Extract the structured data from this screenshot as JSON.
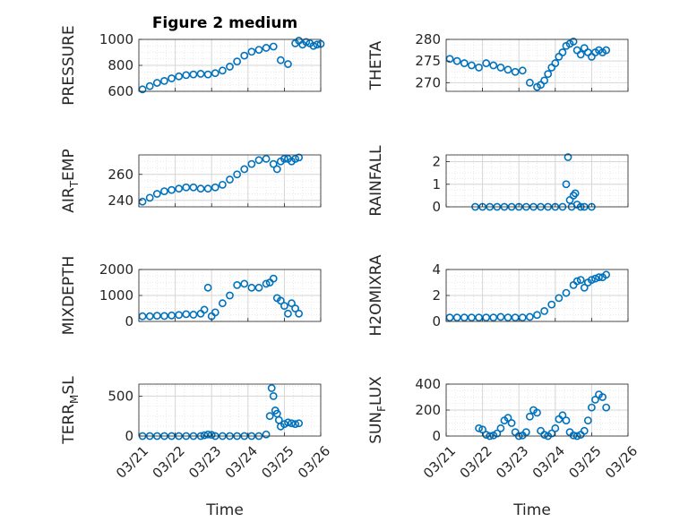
{
  "title": "Figure 2 medium",
  "xlabel": "Time",
  "colors": {
    "marker": "#0072BD",
    "grid": "#e0e0e0",
    "axis": "#262626"
  },
  "chart_data": [
    {
      "type": "scatter",
      "ylabel": "PRESSURE",
      "ylabel_sub": null,
      "ylim": [
        600,
        1000
      ],
      "yticks": [
        600,
        800,
        1000
      ],
      "xticks": [
        "03/21",
        "03/22",
        "03/23",
        "03/24",
        "03/25",
        "03/26"
      ],
      "xlim": [
        0,
        5
      ],
      "grid": true,
      "show_xticklabels": false,
      "series": [
        {
          "x": [
            0.1,
            0.3,
            0.5,
            0.7,
            0.9,
            1.1,
            1.3,
            1.5,
            1.7,
            1.9,
            2.1,
            2.3,
            2.5,
            2.7,
            2.9,
            3.1,
            3.3,
            3.5,
            3.7,
            3.9,
            4.1,
            4.3,
            4.4,
            4.5,
            4.6,
            4.7,
            4.8,
            4.9,
            5.0
          ],
          "y": [
            615,
            640,
            665,
            680,
            700,
            715,
            725,
            730,
            735,
            730,
            740,
            760,
            790,
            830,
            875,
            905,
            920,
            935,
            945,
            840,
            810,
            970,
            990,
            960,
            980,
            970,
            950,
            960,
            965
          ]
        }
      ]
    },
    {
      "type": "scatter",
      "ylabel": "THETA",
      "ylabel_sub": null,
      "ylim": [
        268,
        280
      ],
      "yticks": [
        270,
        275,
        280
      ],
      "xticks": [
        "03/21",
        "03/22",
        "03/23",
        "03/24",
        "03/25",
        "03/26"
      ],
      "xlim": [
        0,
        5
      ],
      "grid": true,
      "show_xticklabels": false,
      "series": [
        {
          "x": [
            0.1,
            0.3,
            0.5,
            0.7,
            0.9,
            1.1,
            1.3,
            1.5,
            1.7,
            1.9,
            2.1,
            2.3,
            2.5,
            2.6,
            2.7,
            2.8,
            2.9,
            3.0,
            3.1,
            3.2,
            3.3,
            3.4,
            3.5,
            3.6,
            3.7,
            3.8,
            3.9,
            4.0,
            4.1,
            4.2,
            4.3,
            4.4
          ],
          "y": [
            275.5,
            275,
            274.5,
            274,
            273.5,
            274.5,
            274,
            273.5,
            273,
            272.5,
            272.8,
            270,
            269,
            269.5,
            270.5,
            272,
            273.5,
            274.5,
            276,
            277,
            278.5,
            279,
            279.5,
            277.5,
            276.5,
            278,
            277,
            276,
            277,
            277.5,
            277,
            277.5
          ]
        }
      ]
    },
    {
      "type": "scatter",
      "ylabel": "AIR",
      "ylabel_sub": "T",
      "ylabel_suffix": "EMP",
      "ylim": [
        235,
        275
      ],
      "yticks": [
        240,
        260
      ],
      "xticks": [
        "03/21",
        "03/22",
        "03/23",
        "03/24",
        "03/25",
        "03/26"
      ],
      "xlim": [
        0,
        5
      ],
      "grid": true,
      "show_xticklabels": false,
      "series": [
        {
          "x": [
            0.1,
            0.3,
            0.5,
            0.7,
            0.9,
            1.1,
            1.3,
            1.5,
            1.7,
            1.9,
            2.1,
            2.3,
            2.5,
            2.7,
            2.9,
            3.1,
            3.3,
            3.5,
            3.7,
            3.8,
            3.9,
            4.0,
            4.1,
            4.2,
            4.3,
            4.4
          ],
          "y": [
            239,
            242,
            245,
            247,
            248,
            249,
            250,
            250,
            249,
            249,
            250,
            252,
            256,
            260,
            264,
            268,
            271,
            272,
            268,
            264,
            270,
            272,
            272,
            270,
            272,
            273
          ]
        }
      ]
    },
    {
      "type": "scatter",
      "ylabel": "RAINFALL",
      "ylabel_sub": null,
      "ylim": [
        0,
        2.3
      ],
      "yticks": [
        0,
        1,
        2
      ],
      "xticks": [
        "03/21",
        "03/22",
        "03/23",
        "03/24",
        "03/25",
        "03/26"
      ],
      "xlim": [
        0,
        5
      ],
      "grid": true,
      "show_xticklabels": false,
      "series": [
        {
          "x": [
            0.8,
            1.0,
            1.2,
            1.4,
            1.6,
            1.8,
            2.0,
            2.2,
            2.4,
            2.6,
            2.8,
            3.0,
            3.2,
            3.3,
            3.35,
            3.4,
            3.45,
            3.5,
            3.55,
            3.6,
            3.7,
            3.8,
            4.0
          ],
          "y": [
            0,
            0,
            0,
            0,
            0,
            0,
            0,
            0,
            0,
            0,
            0,
            0,
            0,
            1.0,
            2.2,
            0.3,
            0.0,
            0.5,
            0.6,
            0.1,
            0,
            0,
            0
          ]
        }
      ]
    },
    {
      "type": "scatter",
      "ylabel": "MIXDEPTH",
      "ylabel_sub": null,
      "ylim": [
        0,
        2000
      ],
      "yticks": [
        0,
        1000,
        2000
      ],
      "xticks": [
        "03/21",
        "03/22",
        "03/23",
        "03/24",
        "03/25",
        "03/26"
      ],
      "xlim": [
        0,
        5
      ],
      "grid": true,
      "show_xticklabels": false,
      "series": [
        {
          "x": [
            0.1,
            0.3,
            0.5,
            0.7,
            0.9,
            1.1,
            1.3,
            1.5,
            1.7,
            1.8,
            1.9,
            2.0,
            2.1,
            2.3,
            2.5,
            2.7,
            2.9,
            3.1,
            3.3,
            3.5,
            3.6,
            3.7,
            3.8,
            3.9,
            4.0,
            4.1,
            4.2,
            4.3,
            4.4
          ],
          "y": [
            200,
            200,
            220,
            210,
            230,
            250,
            280,
            260,
            300,
            450,
            1300,
            200,
            350,
            700,
            1000,
            1400,
            1450,
            1300,
            1300,
            1450,
            1500,
            1650,
            900,
            800,
            600,
            300,
            700,
            500,
            300
          ]
        }
      ]
    },
    {
      "type": "scatter",
      "ylabel": "H2OMIXRA",
      "ylabel_sub": null,
      "ylim": [
        0,
        4
      ],
      "yticks": [
        0,
        2,
        4
      ],
      "xticks": [
        "03/21",
        "03/22",
        "03/23",
        "03/24",
        "03/25",
        "03/26"
      ],
      "xlim": [
        0,
        5
      ],
      "grid": true,
      "show_xticklabels": false,
      "series": [
        {
          "x": [
            0.1,
            0.3,
            0.5,
            0.7,
            0.9,
            1.1,
            1.3,
            1.5,
            1.7,
            1.9,
            2.1,
            2.3,
            2.5,
            2.7,
            2.9,
            3.1,
            3.3,
            3.5,
            3.6,
            3.7,
            3.8,
            3.9,
            4.0,
            4.1,
            4.2,
            4.3,
            4.4
          ],
          "y": [
            0.3,
            0.3,
            0.3,
            0.3,
            0.3,
            0.3,
            0.3,
            0.35,
            0.3,
            0.3,
            0.3,
            0.35,
            0.5,
            0.8,
            1.3,
            1.8,
            2.2,
            2.8,
            3.1,
            3.2,
            2.6,
            3.0,
            3.2,
            3.3,
            3.4,
            3.4,
            3.6
          ]
        }
      ]
    },
    {
      "type": "scatter",
      "ylabel": "TERR",
      "ylabel_sub": "M",
      "ylabel_suffix": "SL",
      "ylim": [
        0,
        650
      ],
      "yticks": [
        0,
        500
      ],
      "xticks": [
        "03/21",
        "03/22",
        "03/23",
        "03/24",
        "03/25",
        "03/26"
      ],
      "xlim": [
        0,
        5
      ],
      "grid": true,
      "show_xticklabels": true,
      "series": [
        {
          "x": [
            0.1,
            0.3,
            0.5,
            0.7,
            0.9,
            1.1,
            1.3,
            1.5,
            1.7,
            1.8,
            1.9,
            2.0,
            2.1,
            2.3,
            2.5,
            2.7,
            2.9,
            3.1,
            3.3,
            3.5,
            3.6,
            3.65,
            3.7,
            3.75,
            3.8,
            3.85,
            3.9,
            4.0,
            4.1,
            4.2,
            4.3,
            4.4
          ],
          "y": [
            0,
            0,
            0,
            0,
            0,
            0,
            0,
            0,
            0,
            10,
            20,
            15,
            0,
            0,
            0,
            0,
            0,
            0,
            0,
            20,
            250,
            600,
            500,
            320,
            280,
            200,
            120,
            150,
            170,
            160,
            150,
            160
          ]
        }
      ]
    },
    {
      "type": "scatter",
      "ylabel": "SUN",
      "ylabel_sub": "F",
      "ylabel_suffix": "LUX",
      "ylim": [
        0,
        400
      ],
      "yticks": [
        0,
        200,
        400
      ],
      "xticks": [
        "03/21",
        "03/22",
        "03/23",
        "03/24",
        "03/25",
        "03/26"
      ],
      "xlim": [
        0,
        5
      ],
      "grid": true,
      "show_xticklabels": true,
      "series": [
        {
          "x": [
            0.9,
            1.0,
            1.1,
            1.2,
            1.3,
            1.4,
            1.5,
            1.6,
            1.7,
            1.8,
            1.9,
            2.0,
            2.1,
            2.2,
            2.3,
            2.4,
            2.5,
            2.6,
            2.7,
            2.8,
            2.9,
            3.0,
            3.1,
            3.2,
            3.3,
            3.4,
            3.5,
            3.6,
            3.7,
            3.8,
            3.9,
            4.0,
            4.1,
            4.2,
            4.3,
            4.4
          ],
          "y": [
            60,
            50,
            10,
            0,
            5,
            20,
            60,
            120,
            140,
            100,
            30,
            0,
            5,
            30,
            150,
            200,
            180,
            40,
            10,
            0,
            20,
            60,
            130,
            160,
            120,
            30,
            5,
            0,
            10,
            40,
            120,
            220,
            280,
            320,
            300,
            220
          ]
        }
      ]
    }
  ]
}
